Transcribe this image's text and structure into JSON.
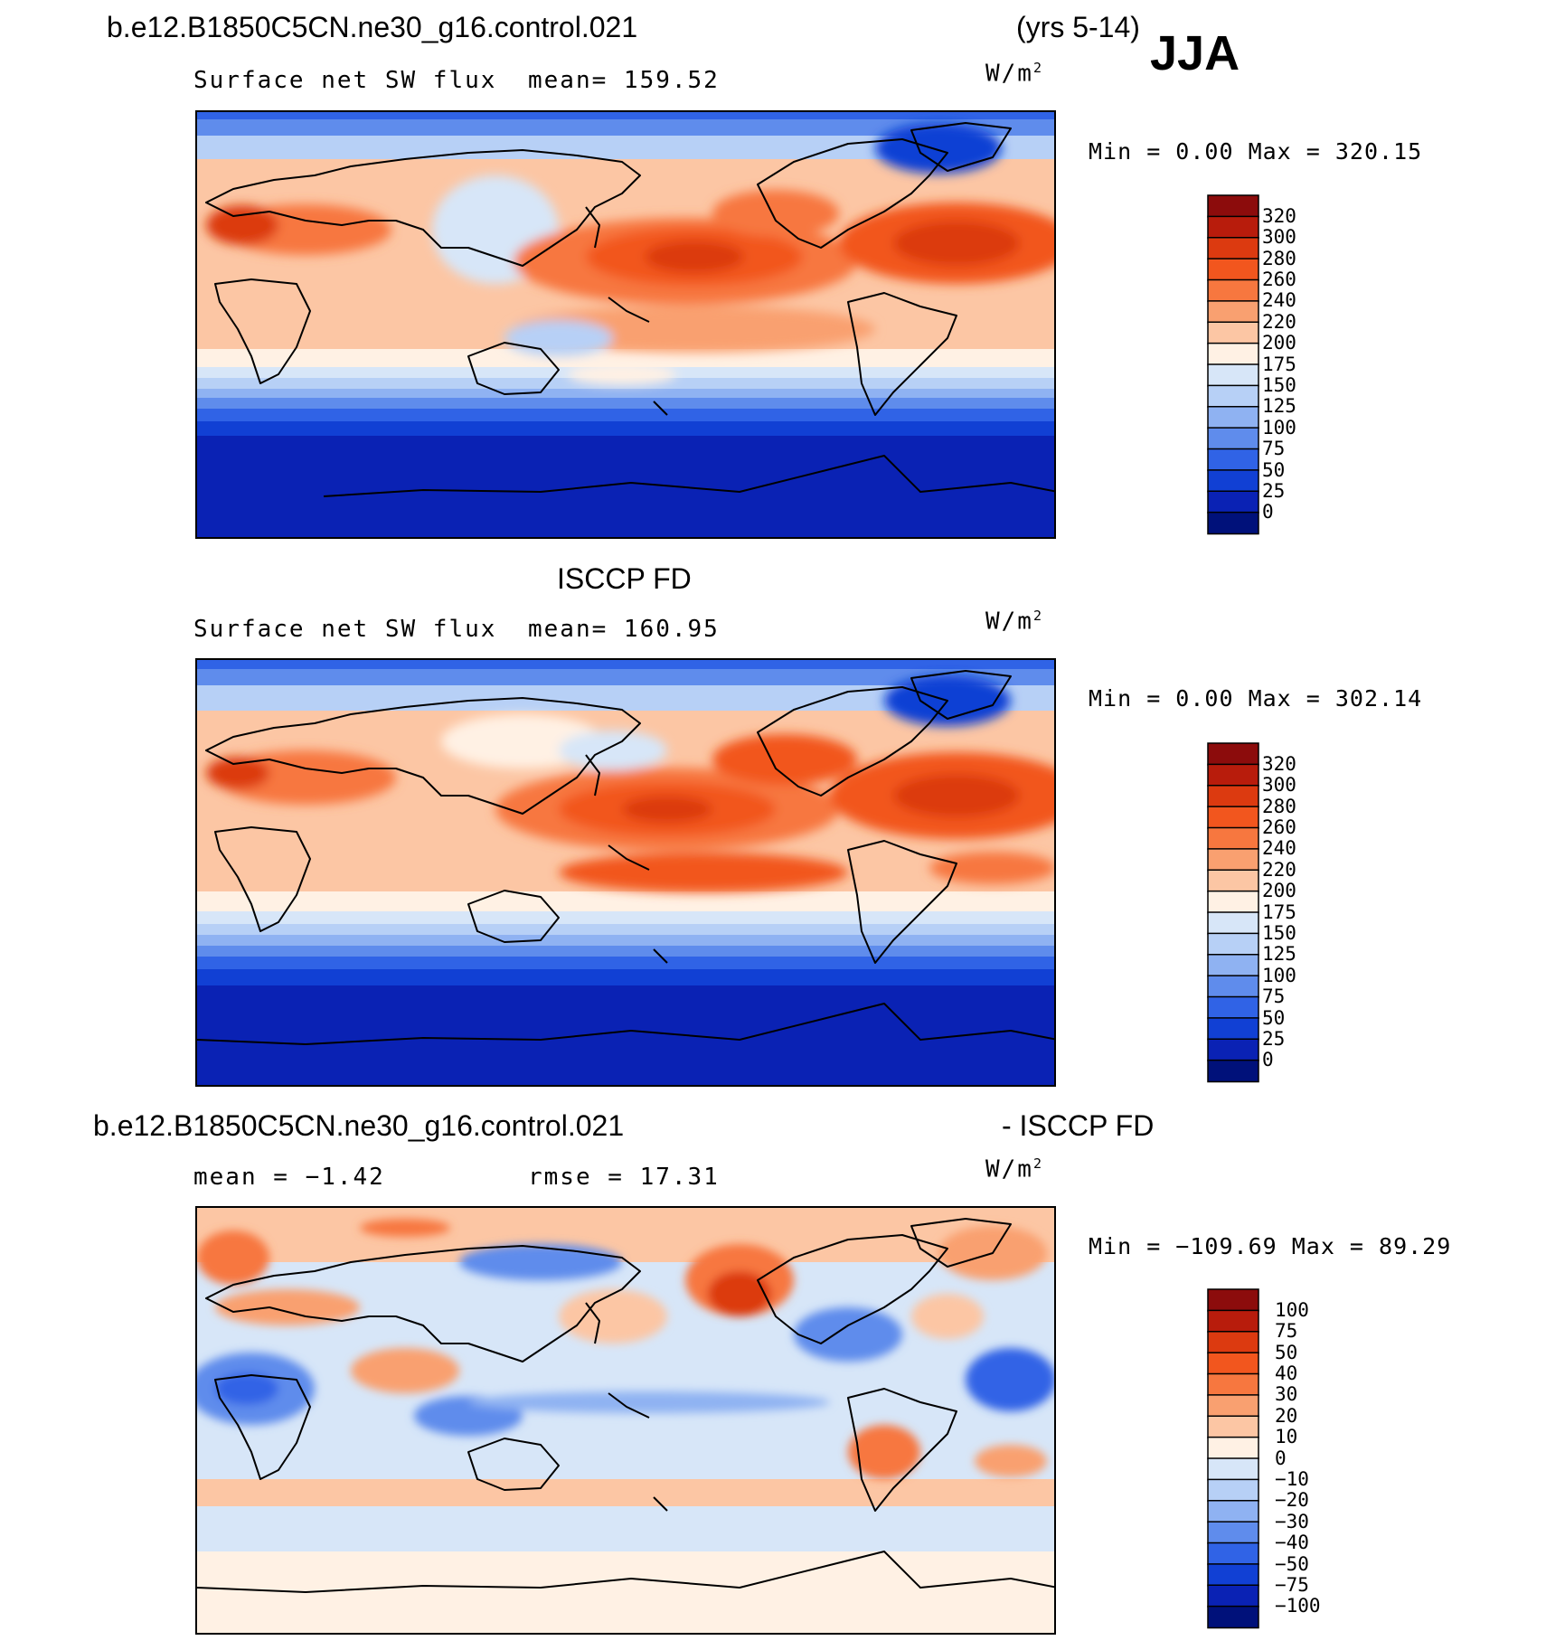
{
  "header": {
    "case_name": "b.e12.B1850C5CN.ne30_g16.control.021",
    "years": "(yrs 5-14)",
    "season": "JJA"
  },
  "panel1": {
    "title": "Surface net SW flux",
    "mean_text": "mean= 159.52",
    "units": "W/m",
    "units_exp": "2",
    "minmax_text": "Min =    0.00 Max = 320.15"
  },
  "panel2": {
    "heading": "ISCCP FD",
    "title": "Surface net SW flux",
    "mean_text": "mean= 160.95",
    "units": "W/m",
    "units_exp": "2",
    "minmax_text": "Min =    0.00 Max = 302.14"
  },
  "panel3": {
    "heading_left": "b.e12.B1850C5CN.ne30_g16.control.021",
    "heading_right": "- ISCCP FD",
    "mean_text": "mean =  −1.42",
    "rmse_text": "rmse =   17.31",
    "units": "W/m",
    "units_exp": "2",
    "minmax_text": "Min = −109.69 Max =   89.29"
  },
  "legend_abs": {
    "labels": [
      "320",
      "300",
      "280",
      "260",
      "240",
      "220",
      "200",
      "175",
      "150",
      "125",
      "100",
      "75",
      "50",
      "25",
      "0"
    ],
    "colors": [
      "#8c0c0c",
      "#b81c0c",
      "#dc3a10",
      "#f2561e",
      "#f7773f",
      "#f9a070",
      "#fcc6a4",
      "#fff1e4",
      "#d7e6f8",
      "#b7d0f6",
      "#8fb2f2",
      "#5f8cec",
      "#3063e6",
      "#1140d4",
      "#0a22b4",
      "#00117a"
    ]
  },
  "legend_diff": {
    "labels": [
      "100",
      "75",
      "50",
      "40",
      "30",
      "20",
      "10",
      "0",
      "−10",
      "−20",
      "−30",
      "−40",
      "−50",
      "−75",
      "−100"
    ],
    "colors": [
      "#8c0c0c",
      "#b81c0c",
      "#dc3a10",
      "#f2561e",
      "#f7773f",
      "#f9a070",
      "#fcc6a4",
      "#fff1e4",
      "#d7e6f8",
      "#b7d0f6",
      "#8fb2f2",
      "#5f8cec",
      "#3063e6",
      "#1140d4",
      "#0a22b4",
      "#00117a"
    ]
  }
}
